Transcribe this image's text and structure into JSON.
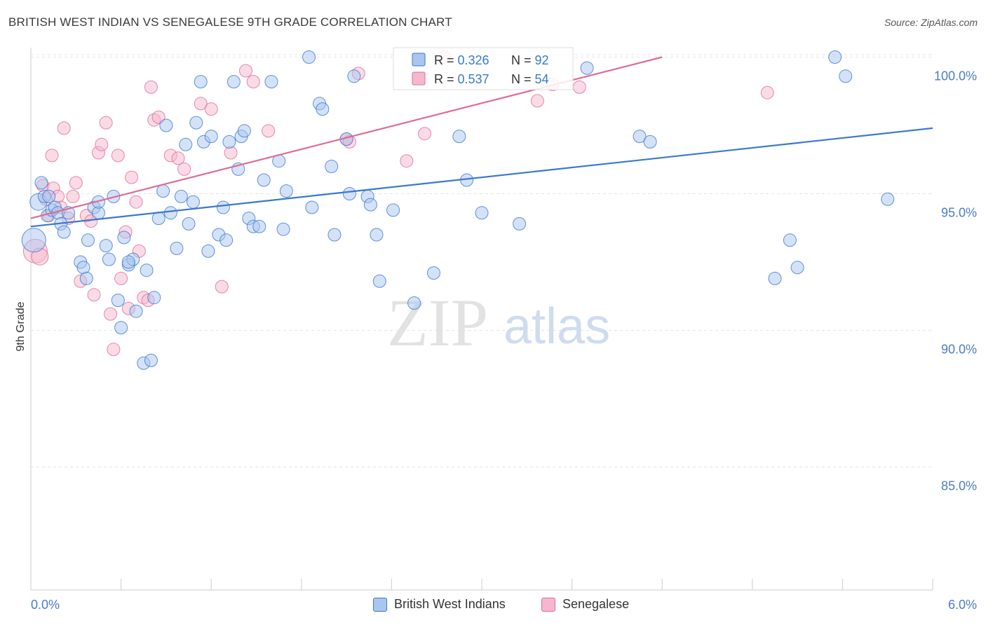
{
  "title": "BRITISH WEST INDIAN VS SENEGALESE 9TH GRADE CORRELATION CHART",
  "source": "Source: ZipAtlas.com",
  "watermark": {
    "zip": "ZIP",
    "atlas": "atlas"
  },
  "colors": {
    "blue": "#3a78d0",
    "blue_fill": "#a9c6f0",
    "pink": "#e06b93",
    "pink_fill": "#f6b7cb",
    "tick_text": "#4b7bc8"
  },
  "legend_box": {
    "rows": [
      {
        "r_label": "R = ",
        "r_value": "0.326",
        "n_label": "N = ",
        "n_value": "92"
      },
      {
        "r_label": "R = ",
        "r_value": "0.537",
        "n_label": "N = ",
        "n_value": "54"
      }
    ]
  },
  "chart_data": {
    "type": "scatter",
    "title": "BRITISH WEST INDIAN VS SENEGALESE 9TH GRADE CORRELATION CHART",
    "xlabel": "",
    "ylabel": "9th Grade",
    "xlim": [
      0.0,
      6.0
    ],
    "ylim": [
      80.5,
      100.5
    ],
    "x_tick_labels": [
      "0.0%",
      "6.0%"
    ],
    "y_ticks": [
      85.0,
      90.0,
      95.0,
      100.0
    ],
    "y_tick_labels": [
      "85.0%",
      "90.0%",
      "95.0%",
      "100.0%"
    ],
    "grid": true,
    "legend": "bottom-center",
    "series": [
      {
        "name": "British West Indians",
        "color": "#3a78d0",
        "trend": [
          [
            0.0,
            93.8
          ],
          [
            6.0,
            97.4
          ]
        ],
        "points": [
          [
            0.02,
            93.3
          ],
          [
            0.05,
            94.7
          ],
          [
            0.07,
            95.4
          ],
          [
            0.09,
            94.9
          ],
          [
            0.11,
            94.2
          ],
          [
            0.12,
            94.9
          ],
          [
            0.14,
            94.4
          ],
          [
            0.16,
            94.5
          ],
          [
            0.18,
            94.3
          ],
          [
            0.2,
            93.9
          ],
          [
            0.22,
            93.6
          ],
          [
            0.25,
            94.3
          ],
          [
            0.33,
            92.5
          ],
          [
            0.35,
            92.3
          ],
          [
            0.37,
            91.9
          ],
          [
            0.38,
            93.3
          ],
          [
            0.42,
            94.5
          ],
          [
            0.45,
            94.3
          ],
          [
            0.5,
            93.1
          ],
          [
            0.52,
            92.6
          ],
          [
            0.55,
            94.9
          ],
          [
            0.58,
            91.1
          ],
          [
            0.6,
            90.1
          ],
          [
            0.62,
            93.4
          ],
          [
            0.65,
            92.4
          ],
          [
            0.68,
            92.6
          ],
          [
            0.7,
            90.7
          ],
          [
            0.75,
            88.8
          ],
          [
            0.77,
            92.2
          ],
          [
            0.8,
            88.9
          ],
          [
            0.82,
            91.2
          ],
          [
            0.85,
            94.1
          ],
          [
            0.88,
            95.1
          ],
          [
            0.9,
            97.5
          ],
          [
            0.93,
            94.3
          ],
          [
            0.97,
            93.0
          ],
          [
            1.0,
            94.9
          ],
          [
            1.03,
            96.8
          ],
          [
            1.05,
            93.9
          ],
          [
            1.08,
            94.7
          ],
          [
            1.1,
            97.6
          ],
          [
            1.13,
            99.1
          ],
          [
            1.15,
            96.9
          ],
          [
            1.18,
            92.9
          ],
          [
            1.2,
            97.1
          ],
          [
            1.25,
            93.5
          ],
          [
            1.28,
            94.5
          ],
          [
            1.3,
            93.3
          ],
          [
            1.32,
            96.9
          ],
          [
            1.35,
            99.1
          ],
          [
            1.38,
            95.9
          ],
          [
            1.4,
            97.1
          ],
          [
            1.42,
            97.3
          ],
          [
            1.45,
            94.1
          ],
          [
            1.48,
            93.8
          ],
          [
            1.52,
            93.8
          ],
          [
            1.55,
            95.5
          ],
          [
            1.6,
            99.1
          ],
          [
            1.65,
            96.2
          ],
          [
            1.68,
            93.7
          ],
          [
            1.7,
            95.1
          ],
          [
            1.85,
            100.0
          ],
          [
            1.87,
            94.5
          ],
          [
            1.92,
            98.3
          ],
          [
            1.94,
            98.1
          ],
          [
            2.0,
            96.0
          ],
          [
            2.02,
            93.5
          ],
          [
            2.1,
            97.0
          ],
          [
            2.12,
            95.0
          ],
          [
            2.15,
            99.3
          ],
          [
            2.24,
            94.9
          ],
          [
            2.26,
            94.6
          ],
          [
            2.3,
            93.5
          ],
          [
            2.32,
            91.8
          ],
          [
            2.41,
            94.4
          ],
          [
            2.55,
            91.0
          ],
          [
            2.68,
            92.1
          ],
          [
            2.85,
            97.1
          ],
          [
            2.9,
            95.5
          ],
          [
            3.0,
            94.3
          ],
          [
            3.25,
            93.9
          ],
          [
            3.7,
            99.6
          ],
          [
            4.05,
            97.1
          ],
          [
            4.12,
            96.9
          ],
          [
            4.95,
            91.9
          ],
          [
            5.05,
            93.3
          ],
          [
            5.1,
            92.3
          ],
          [
            5.35,
            100.0
          ],
          [
            5.42,
            99.3
          ],
          [
            5.7,
            94.8
          ],
          [
            0.45,
            94.7
          ],
          [
            0.65,
            92.5
          ]
        ]
      },
      {
        "name": "Senegalese",
        "color": "#e06b93",
        "trend": [
          [
            0.0,
            94.1
          ],
          [
            4.2,
            100.0
          ]
        ],
        "points": [
          [
            0.03,
            92.9
          ],
          [
            0.06,
            92.7
          ],
          [
            0.08,
            95.3
          ],
          [
            0.1,
            94.8
          ],
          [
            0.12,
            94.2
          ],
          [
            0.14,
            96.4
          ],
          [
            0.15,
            95.2
          ],
          [
            0.18,
            94.9
          ],
          [
            0.2,
            94.5
          ],
          [
            0.22,
            97.4
          ],
          [
            0.25,
            94.1
          ],
          [
            0.28,
            94.9
          ],
          [
            0.3,
            95.4
          ],
          [
            0.33,
            91.8
          ],
          [
            0.37,
            94.2
          ],
          [
            0.4,
            94.0
          ],
          [
            0.42,
            91.3
          ],
          [
            0.45,
            96.5
          ],
          [
            0.47,
            96.8
          ],
          [
            0.5,
            97.6
          ],
          [
            0.53,
            90.6
          ],
          [
            0.55,
            89.3
          ],
          [
            0.58,
            96.4
          ],
          [
            0.6,
            91.9
          ],
          [
            0.63,
            93.6
          ],
          [
            0.65,
            90.8
          ],
          [
            0.67,
            95.6
          ],
          [
            0.7,
            94.7
          ],
          [
            0.72,
            92.9
          ],
          [
            0.75,
            91.2
          ],
          [
            0.78,
            91.1
          ],
          [
            0.8,
            98.9
          ],
          [
            0.82,
            97.7
          ],
          [
            0.85,
            97.8
          ],
          [
            0.93,
            96.4
          ],
          [
            0.98,
            96.3
          ],
          [
            1.02,
            95.9
          ],
          [
            1.13,
            98.3
          ],
          [
            1.2,
            98.1
          ],
          [
            1.27,
            91.6
          ],
          [
            1.33,
            96.5
          ],
          [
            1.43,
            99.5
          ],
          [
            1.48,
            99.1
          ],
          [
            1.58,
            97.3
          ],
          [
            2.1,
            97.0
          ],
          [
            2.12,
            96.9
          ],
          [
            2.18,
            99.4
          ],
          [
            2.5,
            96.2
          ],
          [
            2.62,
            97.2
          ],
          [
            3.37,
            98.4
          ],
          [
            3.47,
            99.0
          ],
          [
            3.65,
            98.9
          ],
          [
            4.9,
            98.7
          ],
          [
            2.75,
            100.0
          ]
        ]
      }
    ]
  }
}
